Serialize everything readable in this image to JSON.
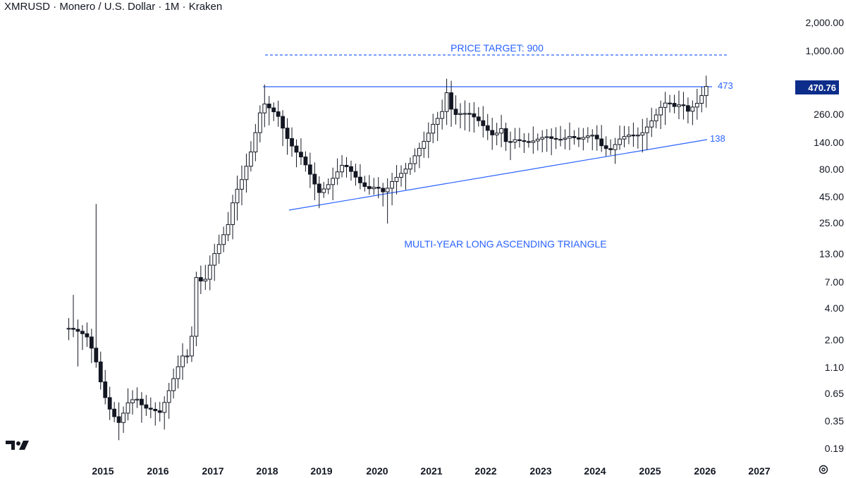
{
  "header": {
    "title": "XMRUSD · Monero / U.S. Dollar · 1M · Kraken"
  },
  "branding": {
    "logo": "tradingview-logo",
    "settings_icon": "gear-icon"
  },
  "chart_data": {
    "type": "candlestick",
    "symbol": "XMRUSD",
    "scale": "log",
    "timeframe": "1M",
    "x_ticks": [
      "2015",
      "2016",
      "2017",
      "2018",
      "2019",
      "2020",
      "2021",
      "2022",
      "2023",
      "2024",
      "2025",
      "2026",
      "2027"
    ],
    "y_ticks": [
      "2,000.00",
      "1,000.00",
      "470.76",
      "260.00",
      "140.00",
      "80.00",
      "45.00",
      "25.00",
      "13.00",
      "7.00",
      "4.00",
      "2.00",
      "1.10",
      "0.65",
      "0.35",
      "0.19"
    ],
    "last_price": "470.76",
    "colors": {
      "up_body": "#ffffff",
      "down_body": "#131722",
      "wick": "#131722",
      "annotation": "#2962ff",
      "badge": "#0d2d8a"
    },
    "annotations": [
      {
        "type": "dashed-level",
        "label": "PRICE TARGET: 900",
        "value": 900
      },
      {
        "type": "resistance",
        "label": "473",
        "value": 473
      },
      {
        "type": "support-trendline",
        "label": "138",
        "value": 138
      },
      {
        "type": "text",
        "label": "MULTI-YEAR LONG ASCENDING TRIANGLE"
      }
    ]
  }
}
